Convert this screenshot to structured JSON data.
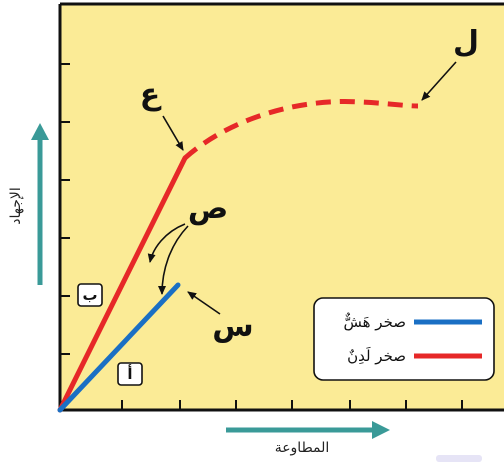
{
  "diagram": {
    "labels": {
      "ain": "ع",
      "lam": "ل",
      "sad": "ص",
      "sin": "س",
      "ba": "ب",
      "alif": "أ"
    },
    "axes": {
      "y_title": "الإجهاد",
      "x_title": "المطاوعة"
    },
    "legend": [
      {
        "label": "صخر هَشٌّ",
        "color": "#1a6fc4"
      },
      {
        "label": "صخر لَدِنٌ",
        "color": "#e62828"
      }
    ],
    "colors": {
      "background": "#fbeb96",
      "brittle": "#1a6fc4",
      "ductile": "#e62828",
      "axis_arrow": "#3a9a98"
    }
  }
}
